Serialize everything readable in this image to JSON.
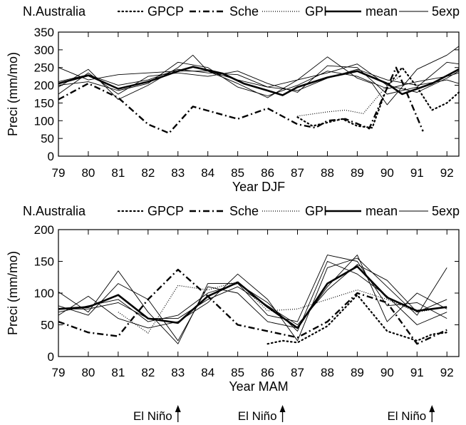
{
  "chart_data": [
    {
      "type": "line",
      "region_label": "N.Australia",
      "xlabel": "Year DJF",
      "ylabel": "Preci (mm/mo)",
      "ylim": [
        0,
        350
      ],
      "yticks": [
        0,
        50,
        100,
        150,
        200,
        250,
        300,
        350
      ],
      "xlim": [
        79,
        92.4
      ],
      "categories": [
        "79",
        "80",
        "81",
        "82",
        "83",
        "84",
        "85",
        "86",
        "87",
        "88",
        "89",
        "90",
        "91",
        "92"
      ],
      "legend": [
        {
          "label": "GPCP",
          "style": "dotted"
        },
        {
          "label": "Sche",
          "style": "dashdot"
        },
        {
          "label": "GPI",
          "style": "fine-dotted"
        },
        {
          "label": "mean",
          "style": "thick"
        },
        {
          "label": "5exp",
          "style": "thin"
        }
      ],
      "series": [
        {
          "name": "GPCP",
          "style": "dotted",
          "x": [
            87.0,
            87.5,
            88.0,
            88.5,
            89.0,
            89.5,
            90.0,
            90.5,
            91.0,
            91.5,
            92.0,
            92.4
          ],
          "y": [
            110,
            85,
            95,
            105,
            85,
            80,
            195,
            250,
            195,
            130,
            150,
            180
          ]
        },
        {
          "name": "Sche",
          "style": "dashdot",
          "x": [
            79.0,
            80.0,
            81.0,
            82.0,
            82.7,
            83.5,
            85.0,
            86.0,
            87.0,
            87.6,
            88.0,
            88.6,
            89.4,
            90.3,
            91.2
          ],
          "y": [
            160,
            205,
            165,
            90,
            65,
            140,
            105,
            135,
            90,
            80,
            100,
            105,
            78,
            250,
            70
          ]
        },
        {
          "name": "GPI",
          "style": "fine-dotted",
          "x": [
            87.0,
            88.0,
            88.6,
            89.2,
            89.5,
            90.0,
            90.5
          ],
          "y": [
            113,
            125,
            130,
            120,
            150,
            200,
            230
          ]
        },
        {
          "name": "mean",
          "style": "thick",
          "x": [
            79.0,
            80.0,
            81.0,
            82.0,
            83.0,
            83.5,
            84.5,
            85.2,
            86.0,
            86.5,
            87.0,
            88.0,
            89.0,
            90.0,
            90.5,
            91.5,
            92.4
          ],
          "y": [
            205,
            228,
            190,
            210,
            240,
            252,
            233,
            205,
            185,
            172,
            195,
            222,
            240,
            205,
            175,
            205,
            245
          ]
        },
        {
          "name": "exp1",
          "style": "thin",
          "x": [
            79.0,
            80.0,
            81.0,
            82.0,
            83.0,
            84.0,
            85.0,
            86.0,
            87.0,
            88.0,
            89.0,
            90.0,
            91.0,
            92.0,
            92.4
          ],
          "y": [
            250,
            215,
            230,
            235,
            240,
            240,
            215,
            195,
            185,
            220,
            245,
            215,
            200,
            215,
            205
          ]
        },
        {
          "name": "exp2",
          "style": "thin",
          "x": [
            79.0,
            80.0,
            81.0,
            82.0,
            83.0,
            83.5,
            84.0,
            85.0,
            86.0,
            87.0,
            88.0,
            89.0,
            89.5,
            90.0,
            91.0,
            92.0,
            92.4
          ],
          "y": [
            195,
            245,
            160,
            200,
            250,
            285,
            240,
            205,
            165,
            215,
            280,
            220,
            205,
            145,
            245,
            285,
            310
          ]
        },
        {
          "name": "exp3",
          "style": "thin",
          "x": [
            79.0,
            80.0,
            81.0,
            82.0,
            83.0,
            84.0,
            85.0,
            86.0,
            87.0,
            88.0,
            89.0,
            90.0,
            91.0,
            92.0,
            92.4
          ],
          "y": [
            175,
            235,
            175,
            225,
            235,
            225,
            240,
            205,
            180,
            255,
            250,
            175,
            195,
            265,
            260
          ]
        },
        {
          "name": "exp4",
          "style": "thin",
          "x": [
            79.0,
            80.0,
            81.0,
            82.0,
            83.0,
            84.0,
            85.0,
            86.0,
            87.0,
            88.0,
            89.0,
            90.0,
            91.0,
            92.0,
            92.4
          ],
          "y": [
            200,
            210,
            185,
            205,
            265,
            250,
            195,
            170,
            200,
            240,
            225,
            190,
            210,
            225,
            235
          ]
        },
        {
          "name": "exp5",
          "style": "thin",
          "x": [
            79.0,
            80.0,
            81.0,
            82.0,
            83.0,
            84.0,
            85.0,
            86.0,
            87.0,
            88.0,
            89.0,
            90.0,
            91.0,
            92.0,
            92.4
          ],
          "y": [
            210,
            230,
            200,
            215,
            245,
            235,
            230,
            195,
            215,
            235,
            260,
            200,
            180,
            220,
            240
          ]
        }
      ]
    },
    {
      "type": "line",
      "region_label": "N.Australia",
      "xlabel": "Year MAM",
      "ylabel": "Preci (mm/mo)",
      "ylim": [
        0,
        200
      ],
      "yticks": [
        0,
        50,
        100,
        150,
        200
      ],
      "xlim": [
        79,
        92.4
      ],
      "categories": [
        "79",
        "80",
        "81",
        "82",
        "83",
        "84",
        "85",
        "86",
        "87",
        "88",
        "89",
        "90",
        "91",
        "92"
      ],
      "legend": [
        {
          "label": "GPCP",
          "style": "dotted"
        },
        {
          "label": "Sche",
          "style": "dashdot"
        },
        {
          "label": "GPI",
          "style": "fine-dotted"
        },
        {
          "label": "mean",
          "style": "thick"
        },
        {
          "label": "5exp",
          "style": "thin"
        }
      ],
      "series": [
        {
          "name": "GPCP",
          "style": "dotted",
          "x": [
            86.0,
            86.5,
            87.0,
            88.0,
            89.0,
            90.0,
            91.0,
            91.5,
            92.0
          ],
          "y": [
            20,
            25,
            22,
            48,
            97,
            40,
            25,
            35,
            38
          ]
        },
        {
          "name": "Sche",
          "style": "dashdot",
          "x": [
            79.0,
            80.0,
            81.0,
            82.0,
            83.0,
            84.0,
            85.0,
            86.0,
            87.0,
            88.0,
            89.0,
            90.0,
            91.0,
            92.0
          ],
          "y": [
            55,
            38,
            32,
            90,
            137,
            95,
            50,
            40,
            30,
            55,
            100,
            85,
            20,
            42
          ]
        },
        {
          "name": "GPI",
          "style": "fine-dotted",
          "x": [
            81.0,
            82.0,
            83.0,
            84.0,
            85.0,
            86.0,
            87.0,
            88.0,
            89.0,
            90.0,
            91.0,
            92.0
          ],
          "y": [
            70,
            37,
            112,
            105,
            118,
            72,
            75,
            90,
            105,
            90,
            70,
            78
          ]
        },
        {
          "name": "mean",
          "style": "thick",
          "x": [
            79.0,
            80.0,
            81.0,
            82.0,
            83.0,
            84.0,
            85.0,
            86.0,
            87.0,
            88.0,
            89.0,
            90.0,
            91.0,
            92.0
          ],
          "y": [
            75,
            78,
            97,
            60,
            53,
            95,
            117,
            78,
            45,
            115,
            142,
            93,
            72,
            78
          ]
        },
        {
          "name": "exp1",
          "style": "thin",
          "x": [
            79.0,
            80.0,
            81.0,
            82.0,
            83.0,
            84.0,
            85.0,
            86.0,
            87.0,
            88.0,
            89.0,
            90.0,
            91.0,
            92.0
          ],
          "y": [
            102,
            70,
            135,
            70,
            20,
            115,
            115,
            65,
            55,
            160,
            150,
            80,
            85,
            60
          ]
        },
        {
          "name": "exp2",
          "style": "thin",
          "x": [
            79.0,
            80.0,
            81.0,
            82.0,
            83.0,
            84.0,
            85.0,
            86.0,
            87.0,
            88.0,
            89.0,
            90.0,
            91.0,
            92.0
          ],
          "y": [
            65,
            95,
            60,
            45,
            55,
            85,
            130,
            90,
            25,
            140,
            155,
            110,
            65,
            140
          ]
        },
        {
          "name": "exp3",
          "style": "thin",
          "x": [
            79.0,
            80.0,
            81.0,
            82.0,
            83.0,
            84.0,
            85.0,
            86.0,
            87.0,
            88.0,
            89.0,
            90.0,
            91.0,
            92.0
          ],
          "y": [
            80,
            65,
            115,
            90,
            25,
            110,
            100,
            55,
            45,
            110,
            160,
            55,
            100,
            75
          ]
        },
        {
          "name": "exp4",
          "style": "thin",
          "x": [
            79.0,
            80.0,
            81.0,
            82.0,
            83.0,
            84.0,
            85.0,
            86.0,
            87.0,
            88.0,
            89.0,
            90.0,
            91.0,
            92.0
          ],
          "y": [
            70,
            80,
            90,
            55,
            65,
            100,
            115,
            85,
            40,
            150,
            130,
            95,
            50,
            70
          ]
        },
        {
          "name": "exp5",
          "style": "thin",
          "x": [
            79.0,
            80.0,
            81.0,
            82.0,
            83.0,
            84.0,
            85.0,
            86.0,
            87.0,
            88.0,
            89.0,
            90.0,
            91.0,
            92.0
          ],
          "y": [
            75,
            75,
            85,
            60,
            60,
            90,
            110,
            80,
            50,
            105,
            145,
            120,
            70,
            90
          ]
        }
      ]
    }
  ],
  "annotations": [
    {
      "label": "El Niño",
      "x": 83
    },
    {
      "label": "El Niño",
      "x": 86.5
    },
    {
      "label": "El Niño",
      "x": 91.5
    }
  ]
}
